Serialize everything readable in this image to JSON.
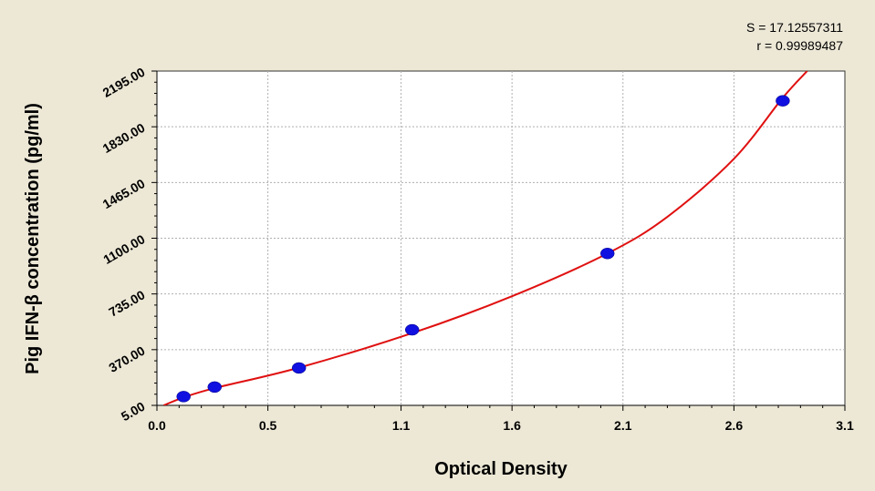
{
  "chart_data": {
    "type": "scatter",
    "title": "",
    "xlabel": "Optical Density",
    "ylabel": "Pig IFN-β concentration (pg/ml)",
    "xlim": [
      0.0,
      3.1
    ],
    "ylim": [
      5.0,
      2195.0
    ],
    "x_ticks": [
      0.0,
      0.5,
      1.1,
      1.6,
      2.1,
      2.6,
      3.1
    ],
    "x_tick_labels": [
      "0.0",
      "0.5",
      "1.1",
      "1.6",
      "2.1",
      "2.6",
      "3.1"
    ],
    "y_ticks": [
      5.0,
      370.0,
      735.0,
      1100.0,
      1465.0,
      1830.0,
      2195.0
    ],
    "y_tick_labels": [
      "5.00",
      "370.00",
      "735.00",
      "1100.00",
      "1465.00",
      "1830.00",
      "2195.00"
    ],
    "grid": true,
    "stats": {
      "s_label": "S = 17.12557311",
      "r_label": "r = 0.99989487"
    },
    "series": [
      {
        "type": "scatter",
        "color": "#1010e0",
        "x": [
          0.12,
          0.26,
          0.64,
          1.15,
          2.03,
          2.82
        ],
        "y": [
          62.5,
          125,
          250,
          500,
          1000,
          2000
        ]
      },
      {
        "type": "line",
        "color": "#e01010",
        "x": [
          0.03,
          0.12,
          0.26,
          0.64,
          1.15,
          1.6,
          2.03,
          2.3,
          2.6,
          2.82,
          2.93
        ],
        "y": [
          5,
          57,
          118,
          252,
          478,
          720,
          1000,
          1240,
          1620,
          2020,
          2195
        ]
      }
    ]
  }
}
